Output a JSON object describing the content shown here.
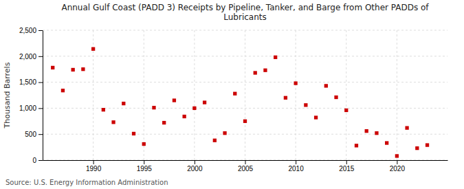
{
  "chart_data": {
    "type": "scatter",
    "title": "Annual Gulf Coast (PADD 3) Receipts by Pipeline, Tanker, and Barge from Other PADDs of\nLubricants",
    "ylabel": "Thousand Barrels",
    "source": "Source: U.S. Energy Information Administration",
    "color": "#cc0000",
    "marker": "square",
    "grid": true,
    "x": [
      1986,
      1987,
      1988,
      1989,
      1990,
      1991,
      1992,
      1993,
      1994,
      1995,
      1996,
      1997,
      1998,
      1999,
      2000,
      2001,
      2002,
      2003,
      2004,
      2005,
      2006,
      2007,
      2008,
      2009,
      2010,
      2011,
      2012,
      2013,
      2014,
      2015,
      2016,
      2017,
      2018,
      2019,
      2020,
      2021,
      2022,
      2023
    ],
    "values": [
      1780,
      1340,
      1740,
      1750,
      2140,
      970,
      730,
      1090,
      510,
      310,
      1010,
      720,
      1150,
      840,
      1000,
      1110,
      380,
      520,
      1280,
      750,
      1680,
      1730,
      1980,
      1200,
      1480,
      1060,
      820,
      1430,
      1210,
      960,
      280,
      560,
      520,
      330,
      80,
      620,
      230,
      290
    ],
    "xlim": [
      1985,
      2025
    ],
    "xticks": [
      1990,
      1995,
      2000,
      2005,
      2010,
      2015,
      2020
    ],
    "ylim": [
      0,
      2500
    ],
    "yticks": [
      0,
      500,
      {
        "value": 1000,
        "label": "1,000"
      },
      {
        "value": 1500,
        "label": "1,500"
      },
      {
        "value": 2000,
        "label": "2,000"
      },
      {
        "value": 2500,
        "label": "2,500"
      }
    ]
  }
}
